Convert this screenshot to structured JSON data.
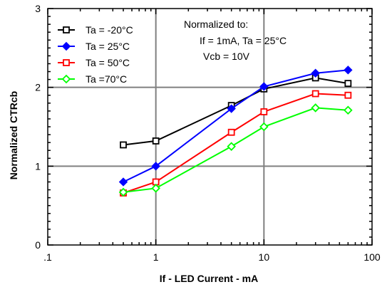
{
  "chart_data": {
    "type": "line",
    "title": "",
    "xlabel": "If - LED Current - mA",
    "ylabel": "Normalized CTRcb",
    "x_scale": "log",
    "xlim": [
      0.1,
      100
    ],
    "ylim": [
      0,
      3
    ],
    "x_tick_labels": [
      ".1",
      "1",
      "10",
      "100"
    ],
    "x_tick_values": [
      0.1,
      1,
      10,
      100
    ],
    "y_tick_labels": [
      "0",
      "1",
      "2",
      "3"
    ],
    "y_tick_values": [
      0,
      1,
      2,
      3
    ],
    "grid": true,
    "legend_position": "top-left",
    "annotation": {
      "lines": [
        "Normalized to:",
        "If = 1mA, Ta = 25°C",
        "Vcb = 10V"
      ]
    },
    "x": [
      0.5,
      1,
      5,
      10,
      30,
      60
    ],
    "series": [
      {
        "name": "Ta = -20°C",
        "color": "#000000",
        "marker": "square-open",
        "values": [
          1.27,
          1.32,
          1.77,
          1.98,
          2.12,
          2.05
        ]
      },
      {
        "name": "Ta = 25°C",
        "color": "#0000ff",
        "marker": "diamond-filled",
        "values": [
          0.8,
          1.0,
          1.73,
          2.01,
          2.18,
          2.22
        ]
      },
      {
        "name": "Ta = 50°C",
        "color": "#ff0000",
        "marker": "square-open",
        "values": [
          0.66,
          0.8,
          1.43,
          1.69,
          1.92,
          1.9
        ]
      },
      {
        "name": "Ta =70°C",
        "color": "#00ff00",
        "marker": "diamond-open",
        "values": [
          0.67,
          0.72,
          1.25,
          1.5,
          1.74,
          1.71
        ]
      }
    ]
  }
}
